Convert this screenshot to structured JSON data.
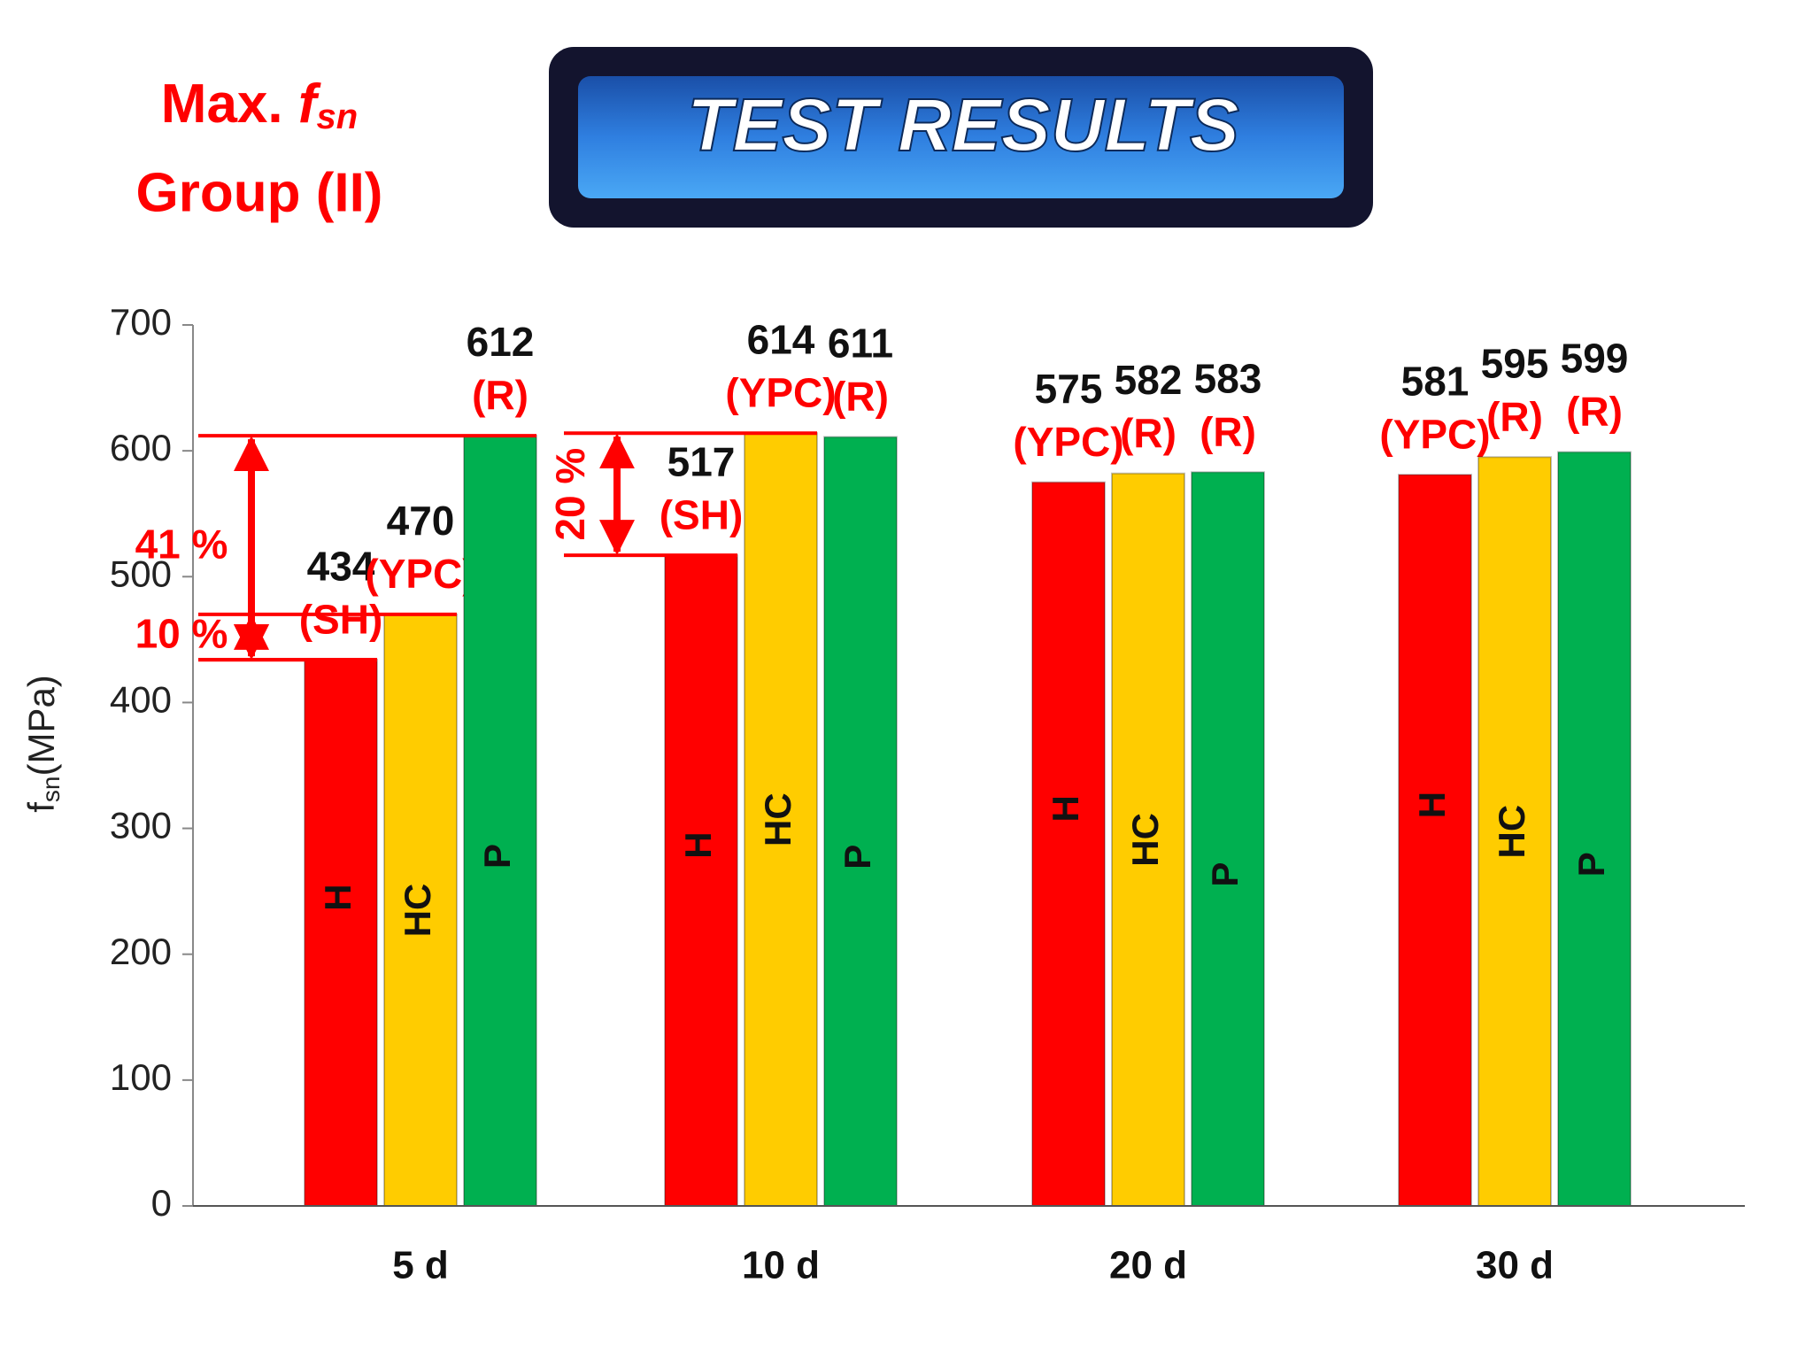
{
  "header": "TEST RESULTS",
  "chart_data": {
    "type": "bar",
    "title": {
      "text": "Max. ",
      "symbol": "f",
      "subscript": "sn"
    },
    "subtitle": "Group (II)",
    "y_label": {
      "symbol": "f",
      "subscript": "sn",
      "unit": "(MPa)"
    },
    "categories": [
      "5 d",
      "10 d",
      "20 d",
      "30 d"
    ],
    "series": [
      {
        "name": "H",
        "color": "#ff0000",
        "values": [
          434,
          517,
          575,
          581
        ],
        "notes": [
          "(SH)",
          "(SH)",
          "(YPC)",
          "(YPC)"
        ]
      },
      {
        "name": "HC",
        "color": "#ffcc00",
        "values": [
          470,
          614,
          582,
          595
        ],
        "notes": [
          "(YPC)",
          "(YPC)",
          "(R)",
          "(R)"
        ]
      },
      {
        "name": "P",
        "color": "#00b050",
        "values": [
          612,
          611,
          583,
          599
        ],
        "notes": [
          "(R)",
          "(R)",
          "(R)",
          "(R)"
        ]
      }
    ],
    "annotations": [
      "41 %",
      "10 %",
      "20 %"
    ],
    "ylim": [
      0,
      700
    ],
    "yticks": [
      0,
      100,
      200,
      300,
      400,
      500,
      600,
      700
    ],
    "grid": false
  }
}
